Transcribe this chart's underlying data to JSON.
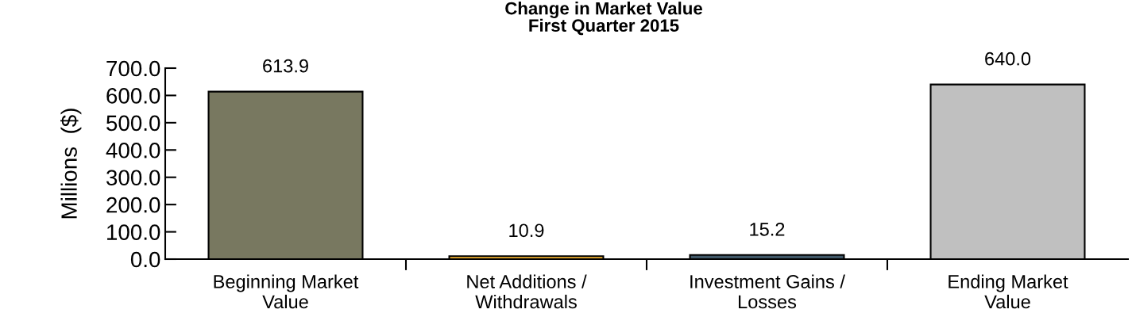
{
  "chart_data": {
    "type": "bar",
    "title": "Change in Market Value\nFirst Quarter 2015",
    "ylabel": "Millions  ($)",
    "categories": [
      "Beginning Market\nValue",
      "Net Additions /\nWithdrawals",
      "Investment Gains /\nLosses",
      "Ending Market\nValue"
    ],
    "values": [
      613.9,
      10.9,
      15.2,
      640.0
    ],
    "colors": [
      "#787860",
      "#f0b030",
      "#405868",
      "#c0c0c0"
    ],
    "value_labels": [
      "613.9",
      "10.9",
      "15.2",
      "640.0"
    ],
    "ylim": [
      0,
      700
    ],
    "yticks": [
      {
        "value": 0,
        "label": "0.0"
      },
      {
        "value": 100,
        "label": "100.0"
      },
      {
        "value": 200,
        "label": "200.0"
      },
      {
        "value": 300,
        "label": "300.0"
      },
      {
        "value": 400,
        "label": "400.0"
      },
      {
        "value": 500,
        "label": "500.0"
      },
      {
        "value": 600,
        "label": "600.0"
      },
      {
        "value": 700,
        "label": "700.0"
      }
    ],
    "grid": false,
    "legend": false
  }
}
